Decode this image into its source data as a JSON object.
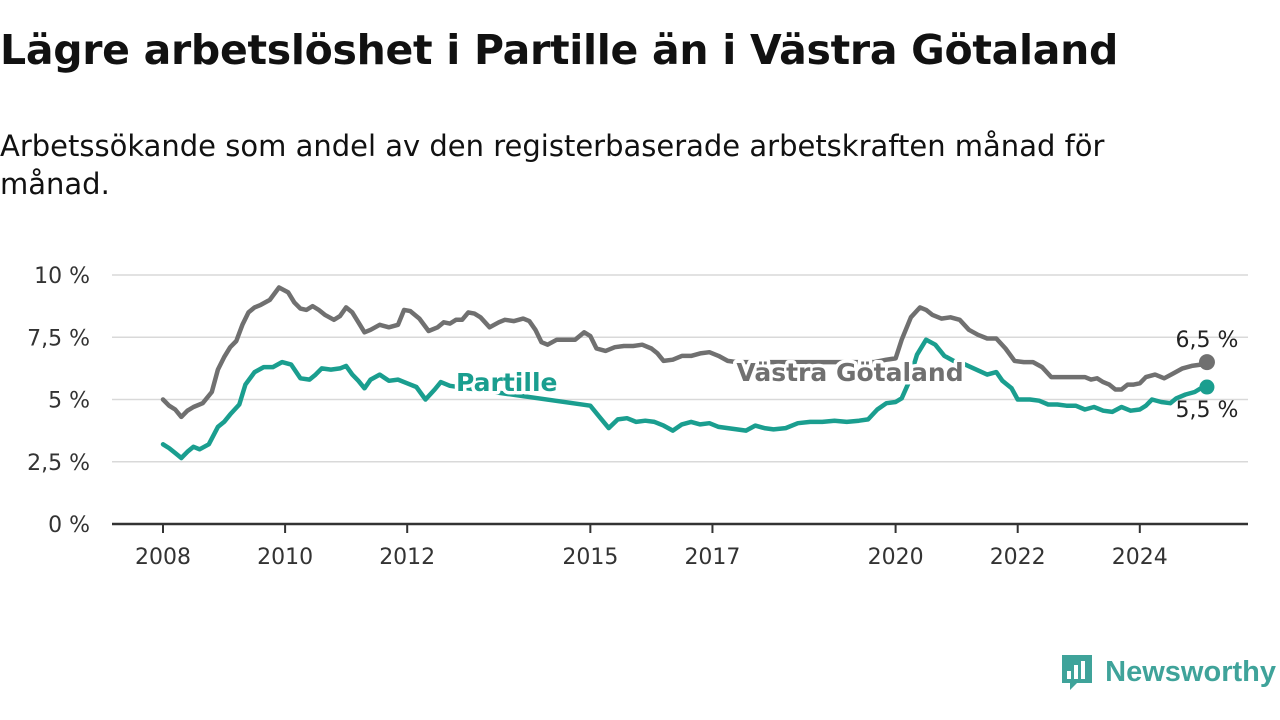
{
  "title": "Lägre arbetslöshet i Partille än i Västra Götaland",
  "subtitle": "Arbetssökande som andel av den registerbaserade arbetskraften månad för månad.",
  "brand": {
    "name": "Newsworthy"
  },
  "chart_data": {
    "type": "line",
    "x_ticks": [
      "2008",
      "2010",
      "2012",
      "2015",
      "2017",
      "2020",
      "2022",
      "2024"
    ],
    "y_ticks": [
      "0 %",
      "2,5 %",
      "5 %",
      "7,5 %",
      "10 %"
    ],
    "ylim": [
      0,
      10
    ],
    "xlim": [
      2007.9,
      2025.9
    ],
    "grid": true,
    "x_date_format": "decimal year",
    "series": [
      {
        "name": "Västra Götaland",
        "color": "#707070",
        "end_label": "6,5 %",
        "points": [
          [
            2008.0,
            5.0
          ],
          [
            2008.1,
            4.75
          ],
          [
            2008.2,
            4.6
          ],
          [
            2008.3,
            4.3
          ],
          [
            2008.4,
            4.55
          ],
          [
            2008.5,
            4.7
          ],
          [
            2008.65,
            4.85
          ],
          [
            2008.8,
            5.3
          ],
          [
            2008.9,
            6.2
          ],
          [
            2009.0,
            6.7
          ],
          [
            2009.1,
            7.1
          ],
          [
            2009.2,
            7.35
          ],
          [
            2009.3,
            8.0
          ],
          [
            2009.4,
            8.5
          ],
          [
            2009.5,
            8.7
          ],
          [
            2009.6,
            8.8
          ],
          [
            2009.75,
            9.0
          ],
          [
            2009.9,
            9.5
          ],
          [
            2010.05,
            9.3
          ],
          [
            2010.15,
            8.9
          ],
          [
            2010.25,
            8.65
          ],
          [
            2010.35,
            8.6
          ],
          [
            2010.45,
            8.75
          ],
          [
            2010.55,
            8.6
          ],
          [
            2010.65,
            8.4
          ],
          [
            2010.8,
            8.2
          ],
          [
            2010.9,
            8.35
          ],
          [
            2011.0,
            8.7
          ],
          [
            2011.1,
            8.5
          ],
          [
            2011.2,
            8.1
          ],
          [
            2011.3,
            7.7
          ],
          [
            2011.4,
            7.8
          ],
          [
            2011.55,
            8.0
          ],
          [
            2011.7,
            7.9
          ],
          [
            2011.85,
            8.0
          ],
          [
            2011.95,
            8.6
          ],
          [
            2012.05,
            8.55
          ],
          [
            2012.2,
            8.25
          ],
          [
            2012.35,
            7.75
          ],
          [
            2012.5,
            7.9
          ],
          [
            2012.6,
            8.1
          ],
          [
            2012.7,
            8.05
          ],
          [
            2012.8,
            8.2
          ],
          [
            2012.9,
            8.2
          ],
          [
            2013.0,
            8.5
          ],
          [
            2013.1,
            8.45
          ],
          [
            2013.2,
            8.3
          ],
          [
            2013.35,
            7.9
          ],
          [
            2013.5,
            8.1
          ],
          [
            2013.6,
            8.2
          ],
          [
            2013.75,
            8.15
          ],
          [
            2013.9,
            8.25
          ],
          [
            2014.0,
            8.15
          ],
          [
            2014.1,
            7.8
          ],
          [
            2014.2,
            7.3
          ],
          [
            2014.3,
            7.2
          ],
          [
            2014.45,
            7.4
          ],
          [
            2014.6,
            7.4
          ],
          [
            2014.75,
            7.4
          ],
          [
            2014.9,
            7.7
          ],
          [
            2015.0,
            7.55
          ],
          [
            2015.1,
            7.05
          ],
          [
            2015.25,
            6.95
          ],
          [
            2015.4,
            7.1
          ],
          [
            2015.55,
            7.15
          ],
          [
            2015.7,
            7.15
          ],
          [
            2015.85,
            7.2
          ],
          [
            2016.0,
            7.05
          ],
          [
            2016.1,
            6.85
          ],
          [
            2016.2,
            6.55
          ],
          [
            2016.35,
            6.6
          ],
          [
            2016.5,
            6.75
          ],
          [
            2016.65,
            6.75
          ],
          [
            2016.8,
            6.85
          ],
          [
            2016.95,
            6.9
          ],
          [
            2017.1,
            6.75
          ],
          [
            2017.25,
            6.55
          ],
          [
            2017.4,
            6.5
          ],
          [
            2019.65,
            6.5
          ],
          [
            2019.85,
            6.6
          ],
          [
            2020.0,
            6.65
          ],
          [
            2020.1,
            7.4
          ],
          [
            2020.25,
            8.3
          ],
          [
            2020.4,
            8.7
          ],
          [
            2020.5,
            8.6
          ],
          [
            2020.6,
            8.4
          ],
          [
            2020.75,
            8.25
          ],
          [
            2020.9,
            8.3
          ],
          [
            2021.05,
            8.2
          ],
          [
            2021.2,
            7.8
          ],
          [
            2021.35,
            7.6
          ],
          [
            2021.5,
            7.45
          ],
          [
            2021.65,
            7.45
          ],
          [
            2021.8,
            7.05
          ],
          [
            2021.95,
            6.55
          ],
          [
            2022.1,
            6.5
          ],
          [
            2022.25,
            6.5
          ],
          [
            2022.4,
            6.3
          ],
          [
            2022.55,
            5.9
          ],
          [
            2022.7,
            5.9
          ],
          [
            2022.85,
            5.9
          ],
          [
            2023.0,
            5.9
          ],
          [
            2023.1,
            5.9
          ],
          [
            2023.2,
            5.8
          ],
          [
            2023.3,
            5.85
          ],
          [
            2023.4,
            5.7
          ],
          [
            2023.5,
            5.6
          ],
          [
            2023.6,
            5.4
          ],
          [
            2023.7,
            5.4
          ],
          [
            2023.8,
            5.6
          ],
          [
            2023.9,
            5.6
          ],
          [
            2024.0,
            5.65
          ],
          [
            2024.1,
            5.9
          ],
          [
            2024.25,
            6.0
          ],
          [
            2024.4,
            5.85
          ],
          [
            2024.55,
            6.05
          ],
          [
            2024.7,
            6.25
          ],
          [
            2024.85,
            6.35
          ],
          [
            2025.0,
            6.4
          ],
          [
            2025.1,
            6.5
          ]
        ]
      },
      {
        "name": "Partille",
        "color": "#1a9e8f",
        "end_label": "5,5 %",
        "points": [
          [
            2008.0,
            3.2
          ],
          [
            2008.1,
            3.05
          ],
          [
            2008.2,
            2.85
          ],
          [
            2008.3,
            2.65
          ],
          [
            2008.4,
            2.9
          ],
          [
            2008.5,
            3.1
          ],
          [
            2008.6,
            3.0
          ],
          [
            2008.75,
            3.2
          ],
          [
            2008.9,
            3.9
          ],
          [
            2009.0,
            4.1
          ],
          [
            2009.1,
            4.4
          ],
          [
            2009.25,
            4.8
          ],
          [
            2009.35,
            5.6
          ],
          [
            2009.5,
            6.1
          ],
          [
            2009.65,
            6.3
          ],
          [
            2009.8,
            6.3
          ],
          [
            2009.95,
            6.5
          ],
          [
            2010.1,
            6.4
          ],
          [
            2010.25,
            5.85
          ],
          [
            2010.4,
            5.8
          ],
          [
            2010.5,
            6.0
          ],
          [
            2010.6,
            6.25
          ],
          [
            2010.75,
            6.2
          ],
          [
            2010.9,
            6.25
          ],
          [
            2011.0,
            6.35
          ],
          [
            2011.1,
            6.0
          ],
          [
            2011.2,
            5.75
          ],
          [
            2011.3,
            5.45
          ],
          [
            2011.4,
            5.8
          ],
          [
            2011.55,
            6.0
          ],
          [
            2011.7,
            5.75
          ],
          [
            2011.85,
            5.8
          ],
          [
            2012.0,
            5.65
          ],
          [
            2012.15,
            5.5
          ],
          [
            2012.3,
            5.0
          ],
          [
            2012.45,
            5.4
          ],
          [
            2012.55,
            5.7
          ],
          [
            2012.7,
            5.55
          ],
          [
            2015.0,
            4.75
          ],
          [
            2015.15,
            4.3
          ],
          [
            2015.3,
            3.85
          ],
          [
            2015.45,
            4.2
          ],
          [
            2015.6,
            4.25
          ],
          [
            2015.75,
            4.1
          ],
          [
            2015.9,
            4.15
          ],
          [
            2016.05,
            4.1
          ],
          [
            2016.2,
            3.95
          ],
          [
            2016.35,
            3.75
          ],
          [
            2016.5,
            4.0
          ],
          [
            2016.65,
            4.1
          ],
          [
            2016.8,
            4.0
          ],
          [
            2016.95,
            4.05
          ],
          [
            2017.1,
            3.9
          ],
          [
            2017.25,
            3.85
          ],
          [
            2017.4,
            3.8
          ],
          [
            2017.55,
            3.75
          ],
          [
            2017.7,
            3.95
          ],
          [
            2017.85,
            3.85
          ],
          [
            2018.0,
            3.8
          ],
          [
            2018.2,
            3.85
          ],
          [
            2018.4,
            4.05
          ],
          [
            2018.6,
            4.1
          ],
          [
            2018.8,
            4.1
          ],
          [
            2019.0,
            4.15
          ],
          [
            2019.2,
            4.1
          ],
          [
            2019.4,
            4.15
          ],
          [
            2019.55,
            4.2
          ],
          [
            2019.7,
            4.6
          ],
          [
            2019.85,
            4.85
          ],
          [
            2020.0,
            4.9
          ],
          [
            2020.1,
            5.05
          ],
          [
            2020.2,
            5.6
          ],
          [
            2020.35,
            6.8
          ],
          [
            2020.5,
            7.4
          ],
          [
            2020.65,
            7.2
          ],
          [
            2020.8,
            6.75
          ],
          [
            2020.95,
            6.55
          ],
          [
            2021.05,
            6.5
          ],
          [
            2021.5,
            6.0
          ],
          [
            2021.65,
            6.1
          ],
          [
            2021.75,
            5.75
          ],
          [
            2021.9,
            5.45
          ],
          [
            2022.0,
            5.0
          ],
          [
            2022.2,
            5.0
          ],
          [
            2022.35,
            4.95
          ],
          [
            2022.5,
            4.8
          ],
          [
            2022.65,
            4.8
          ],
          [
            2022.8,
            4.75
          ],
          [
            2022.95,
            4.75
          ],
          [
            2023.1,
            4.6
          ],
          [
            2023.25,
            4.7
          ],
          [
            2023.4,
            4.55
          ],
          [
            2023.55,
            4.5
          ],
          [
            2023.7,
            4.7
          ],
          [
            2023.85,
            4.55
          ],
          [
            2024.0,
            4.6
          ],
          [
            2024.1,
            4.75
          ],
          [
            2024.2,
            5.0
          ],
          [
            2024.35,
            4.9
          ],
          [
            2024.5,
            4.85
          ],
          [
            2024.6,
            5.05
          ],
          [
            2024.75,
            5.2
          ],
          [
            2024.9,
            5.3
          ],
          [
            2025.0,
            5.45
          ],
          [
            2025.1,
            5.5
          ]
        ]
      }
    ],
    "label_series": [
      "Partille",
      "Västra Götaland"
    ]
  }
}
